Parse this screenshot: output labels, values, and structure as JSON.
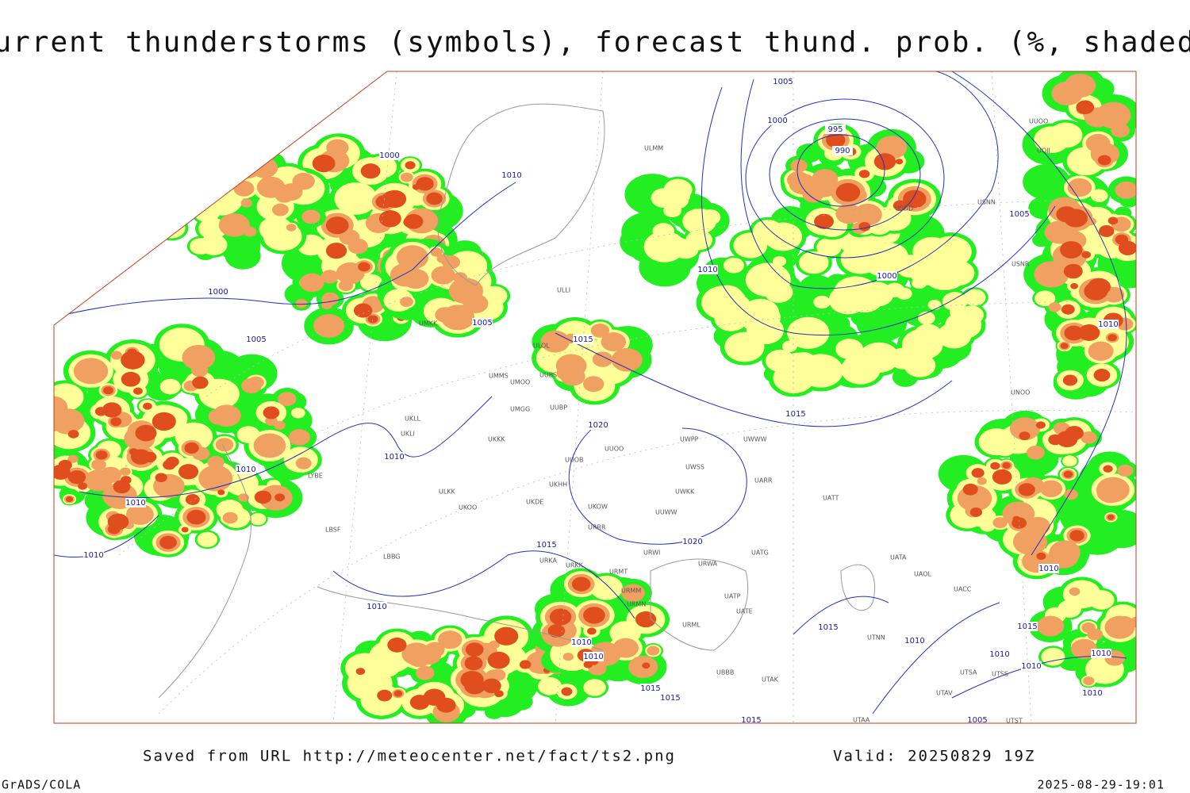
{
  "title": "Current thunderstorms (symbols), forecast thund. prob. (%, shaded)",
  "footer": {
    "source": "Saved from URL http://meteocenter.net/fact/ts2.png",
    "valid": "Valid: 20250829 19Z",
    "software": "GrADS/COLA",
    "timestamp": "2025-08-29-19:01"
  },
  "isobar_labels": [
    "1005",
    "1000",
    "995",
    "990",
    "1000",
    "1010",
    "1005",
    "1010",
    "1000",
    "1000",
    "1005",
    "1015",
    "1010",
    "1005",
    "1015",
    "1020",
    "1010",
    "1010",
    "1010",
    "1020",
    "1015",
    "1010",
    "1010",
    "1010",
    "1015",
    "1010",
    "1010",
    "1010",
    "1015",
    "1010",
    "1010",
    "1010",
    "1015",
    "1015",
    "1010",
    "1015",
    "1005"
  ],
  "station_labels": [
    "UUOO",
    "UOII",
    "USDD",
    "USNN",
    "USNR",
    "ULMM",
    "ULLI",
    "UMKK",
    "ULOL",
    "UMMS",
    "UMOO",
    "UUBS",
    "UMGG",
    "UUBP",
    "UKLL",
    "UKLI",
    "UKKK",
    "UUOO",
    "UUOB",
    "UWPP",
    "UWWW",
    "UWSS",
    "UARR",
    "UKHH",
    "ULKK",
    "UKOO",
    "UKDE",
    "UKOW",
    "UUWW",
    "UWKK",
    "URRR",
    "UATT",
    "UNOO",
    "LYBE",
    "LBSF",
    "LBBG",
    "URKA",
    "URKK",
    "URMT",
    "URWI",
    "URWA",
    "UATG",
    "UATA",
    "UAOL",
    "UACC",
    "URMM",
    "URMN",
    "UATP",
    "UATE",
    "URML",
    "UTNN",
    "UBBB",
    "UTAK",
    "UTSA",
    "UTSS",
    "UTAV",
    "UTAA",
    "UTST"
  ]
}
